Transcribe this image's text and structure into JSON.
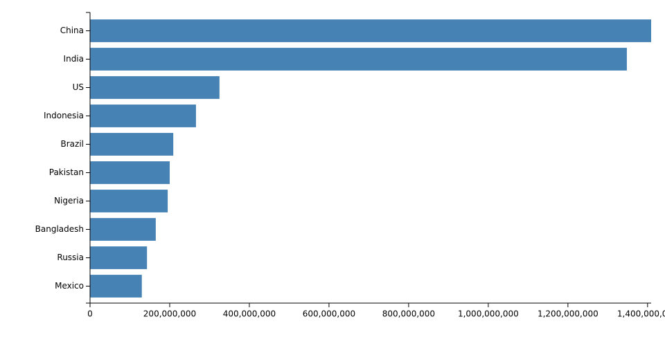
{
  "chart_data": {
    "type": "bar",
    "orientation": "horizontal",
    "categories": [
      "China",
      "India",
      "US",
      "Indonesia",
      "Brazil",
      "Pakistan",
      "Nigeria",
      "Bangladesh",
      "Russia",
      "Mexico"
    ],
    "values": [
      1409000000,
      1348000000,
      325000000,
      266000000,
      209000000,
      200000000,
      195000000,
      165000000,
      143000000,
      130000000
    ],
    "color": "#4682b4",
    "xlim": [
      0,
      1409000000
    ],
    "xticks": [
      0,
      {
        "value": 200000000,
        "label": "200,000,000"
      },
      {
        "value": 400000000,
        "label": "400,000,000"
      },
      {
        "value": 600000000,
        "label": "600,000,000"
      },
      {
        "value": 800000000,
        "label": "800,000,000"
      },
      {
        "value": 1000000000,
        "label": "1,000,000,000"
      },
      {
        "value": 1200000000,
        "label": "1,200,000,000"
      },
      {
        "value": 1400000000,
        "label": "1,400,000,000"
      }
    ],
    "grid": false
  }
}
